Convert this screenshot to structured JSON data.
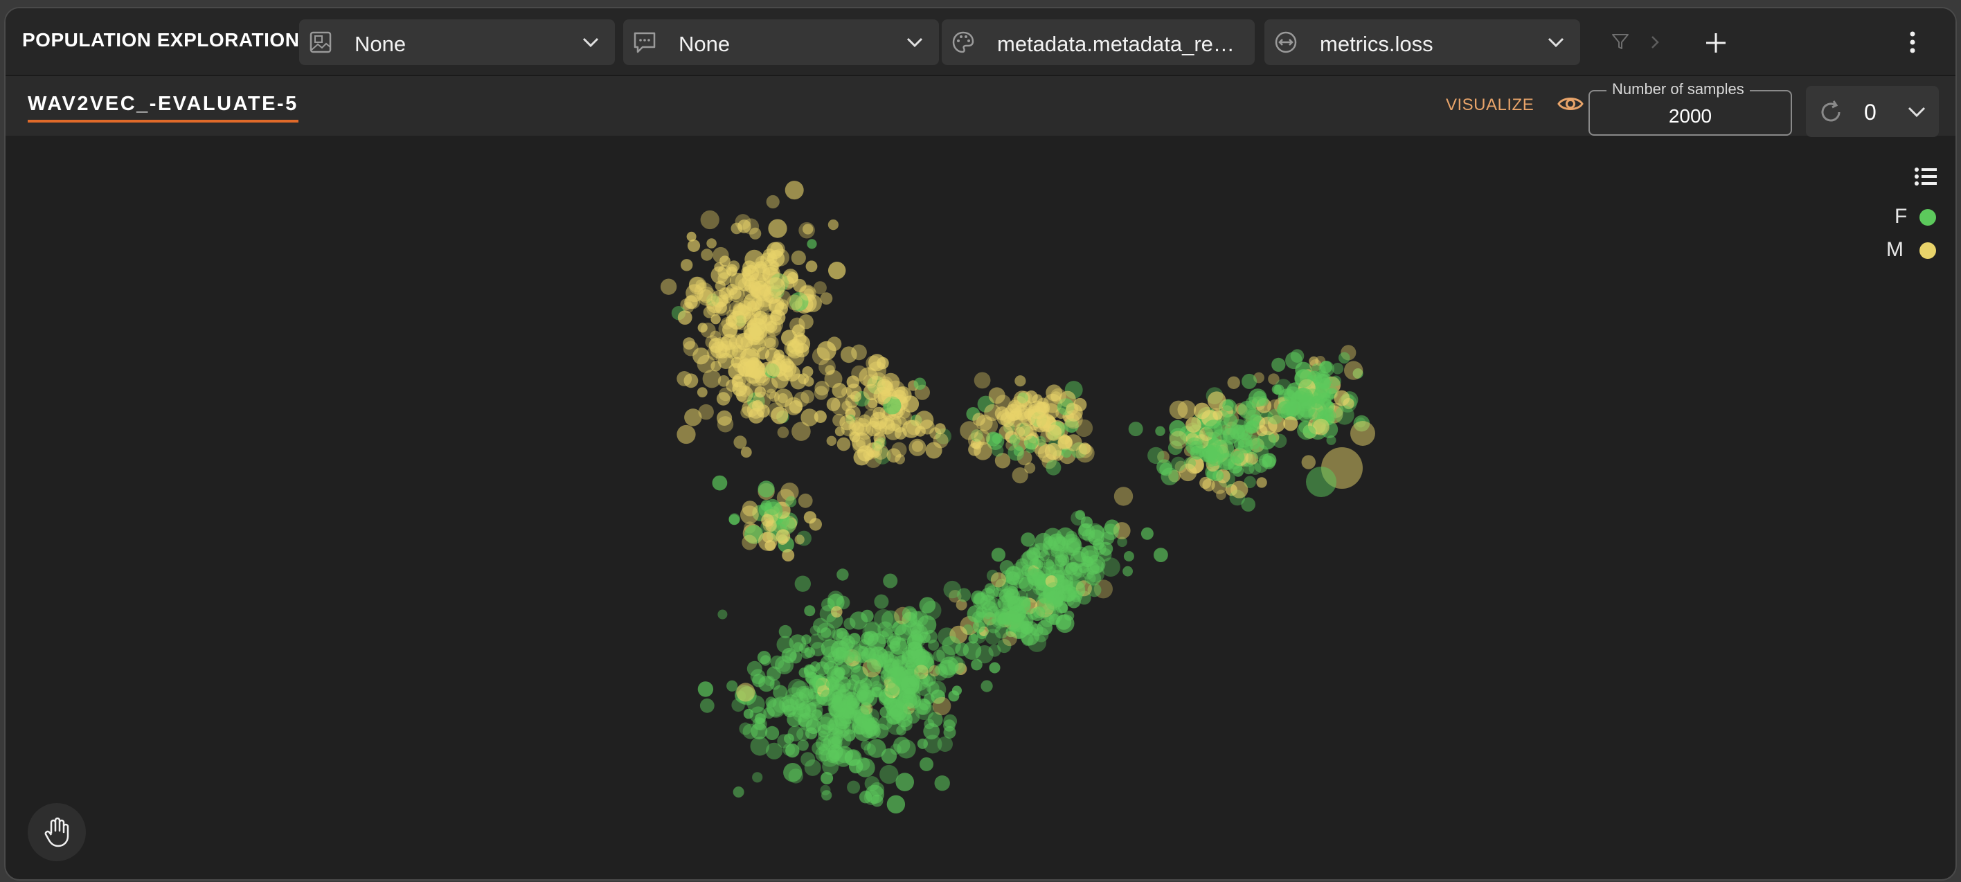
{
  "app": {
    "title": "POPULATION EXPLORATION"
  },
  "toolbar": {
    "image_selector": {
      "icon": "image-icon",
      "value": "None"
    },
    "text_selector": {
      "icon": "speech-bubble-icon",
      "value": "None"
    },
    "color_by": {
      "icon": "palette-icon",
      "value": "metadata.metadata_re…"
    },
    "size_by": {
      "icon": "resize-horizontal-icon",
      "value": "metrics.loss"
    },
    "filter_icon": "filter-icon",
    "add_icon": "plus-icon",
    "more_icon": "kebab-menu-icon"
  },
  "subbar": {
    "project_name": "WAV2VEC_-EVALUATE-5",
    "visualize_label": "VISUALIZE",
    "samples_label": "Number of samples",
    "samples_value": "2000",
    "version_value": "0"
  },
  "legend": {
    "items": [
      {
        "label": "F",
        "color": "#5cc95c"
      },
      {
        "label": "M",
        "color": "#e8d36a"
      }
    ]
  },
  "colors": {
    "accent": "#e06a2a",
    "visualize": "#e8a46a",
    "female": "#5cc95c",
    "male": "#e8d36a",
    "background": "#202020"
  },
  "chart_data": {
    "type": "scatter",
    "legend_placement": "top-right",
    "grid": false,
    "series": [
      {
        "name": "F",
        "color": "#5cc95c"
      },
      {
        "name": "M",
        "color": "#e8d36a"
      }
    ]
  }
}
